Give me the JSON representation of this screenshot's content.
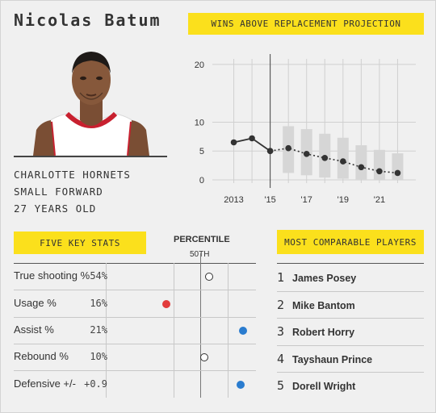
{
  "player": {
    "name": "Nicolas Batum",
    "team": "CHARLOTTE HORNETS",
    "position": "SMALL FORWARD",
    "age": "27 YEARS OLD"
  },
  "war_chart": {
    "title": "WINS ABOVE REPLACEMENT PROJECTION"
  },
  "five_key_stats": {
    "title": "FIVE KEY STATS",
    "percentile_label": "PERCENTILE",
    "fiftieth_label": "50TH",
    "rows": [
      {
        "label": "True shooting %",
        "value": "54%",
        "percentile": 58,
        "color": "#ffffff"
      },
      {
        "label": "Usage %",
        "value": "16%",
        "percentile": 18,
        "color": "#e23b3b"
      },
      {
        "label": "Assist %",
        "value": "21%",
        "percentile": 90,
        "color": "#2a7ccf"
      },
      {
        "label": "Rebound %",
        "value": "10%",
        "percentile": 54,
        "color": "#ffffff"
      },
      {
        "label": "Defensive +/-",
        "value": "+0.9",
        "percentile": 88,
        "color": "#2a7ccf"
      }
    ]
  },
  "comparables": {
    "title": "MOST COMPARABLE PLAYERS",
    "players": [
      {
        "rank": "1",
        "name": "James Posey"
      },
      {
        "rank": "2",
        "name": "Mike Bantom"
      },
      {
        "rank": "3",
        "name": "Robert Horry"
      },
      {
        "rank": "4",
        "name": "Tayshaun Prince"
      },
      {
        "rank": "5",
        "name": "Dorell Wright"
      }
    ]
  },
  "chart_data": {
    "type": "line",
    "title": "WINS ABOVE REPLACEMENT PROJECTION",
    "xlabel": "",
    "ylabel": "",
    "ylim": [
      0,
      20
    ],
    "yticks": [
      "0",
      "5",
      "10",
      "20"
    ],
    "xticks": [
      {
        "year": 2013,
        "label": "2013"
      },
      {
        "year": 2015,
        "label": "'15"
      },
      {
        "year": 2017,
        "label": "'17"
      },
      {
        "year": 2019,
        "label": "'19"
      },
      {
        "year": 2021,
        "label": "'21"
      }
    ],
    "xlim": [
      2012,
      2023
    ],
    "divider_year": 2015,
    "grid": true,
    "series": [
      {
        "style": "solid",
        "x": [
          2013,
          2014,
          2015
        ],
        "y": [
          6.5,
          7.2,
          5.0
        ]
      },
      {
        "style": "dotted",
        "x": [
          2015,
          2016,
          2017,
          2018,
          2019,
          2020,
          2021,
          2022
        ],
        "y": [
          5.0,
          5.5,
          4.5,
          3.8,
          3.2,
          2.2,
          1.5,
          1.2
        ]
      }
    ],
    "ranges": [
      {
        "x": 2016,
        "low": 1.2,
        "high": 9.3
      },
      {
        "x": 2017,
        "low": 0.8,
        "high": 8.8
      },
      {
        "x": 2018,
        "low": 0.4,
        "high": 8.0
      },
      {
        "x": 2019,
        "low": 0.2,
        "high": 7.3
      },
      {
        "x": 2020,
        "low": 0.1,
        "high": 6.0
      },
      {
        "x": 2021,
        "low": 0.0,
        "high": 5.2
      },
      {
        "x": 2022,
        "low": 0.0,
        "high": 4.6
      }
    ],
    "colors": {
      "line": "#333333",
      "range": "#d6d6d6",
      "grid": "#d0d0d0",
      "divider": "#444444"
    }
  },
  "colors": {
    "accent": "#fbe01c",
    "background": "#f0f0f0"
  }
}
